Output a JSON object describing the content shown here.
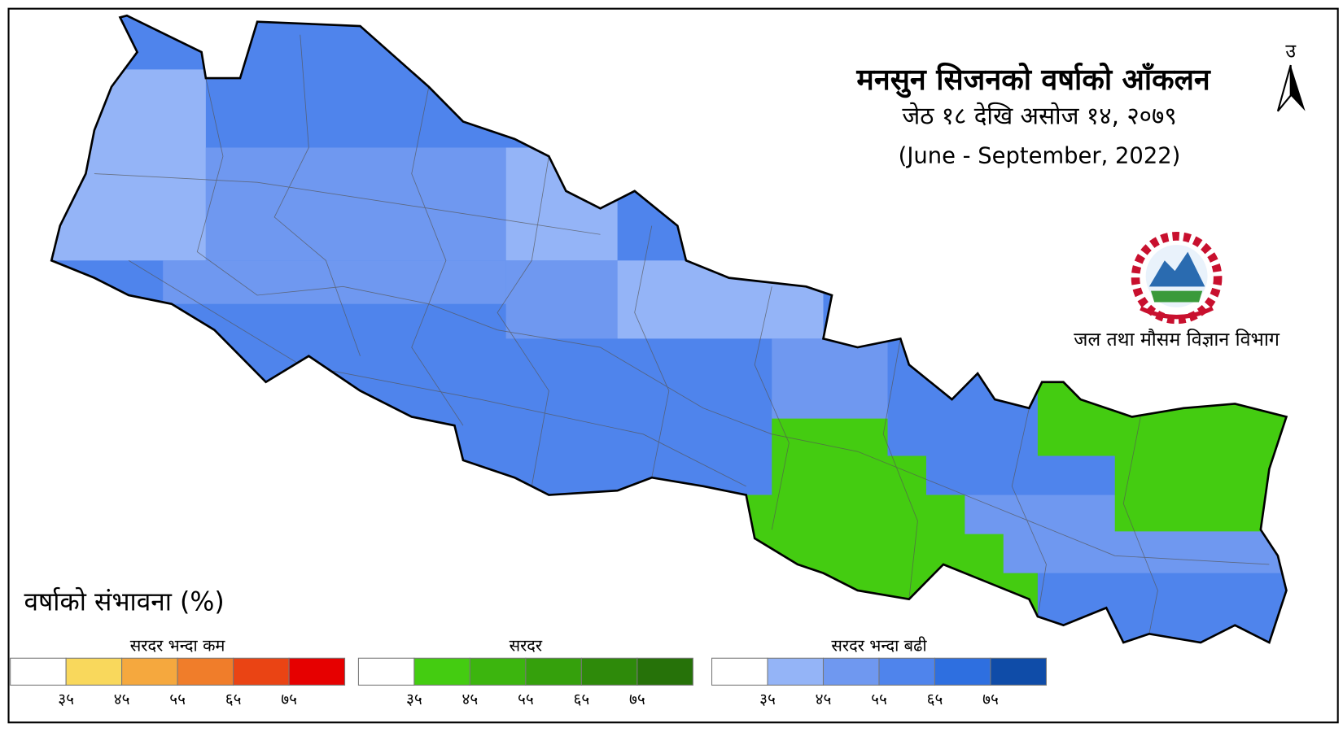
{
  "title": {
    "line1": "मनसुन सिजनको वर्षाको आँकलन",
    "line2": "जेठ १८ देखि असोज १४, २०७९",
    "line3": "(June - September, 2022)"
  },
  "north": "उ",
  "agency": "जल तथा मौसम विज्ञान विभाग",
  "legend": {
    "title": "वर्षाको संभावना (%)",
    "groups": [
      {
        "name": "सरदर भन्दा कम",
        "colors": [
          "#ffffff",
          "#f9d85c",
          "#f5a83e",
          "#f07d2a",
          "#ea4414",
          "#e60000"
        ],
        "ticks": [
          "३५",
          "४५",
          "५५",
          "६५",
          "७५"
        ]
      },
      {
        "name": "सरदर",
        "colors": [
          "#ffffff",
          "#44cc11",
          "#3cb50e",
          "#35a00c",
          "#2e8a0a",
          "#267209"
        ],
        "ticks": [
          "३५",
          "४५",
          "५५",
          "६५",
          "७५"
        ]
      },
      {
        "name": "सरदर भन्दा बढी",
        "colors": [
          "#ffffff",
          "#94b4f7",
          "#6f98f0",
          "#4f84ec",
          "#2e6fe0",
          "#0f4ca8"
        ],
        "ticks": [
          "३५",
          "४५",
          "५५",
          "६५",
          "७५"
        ]
      }
    ]
  }
}
